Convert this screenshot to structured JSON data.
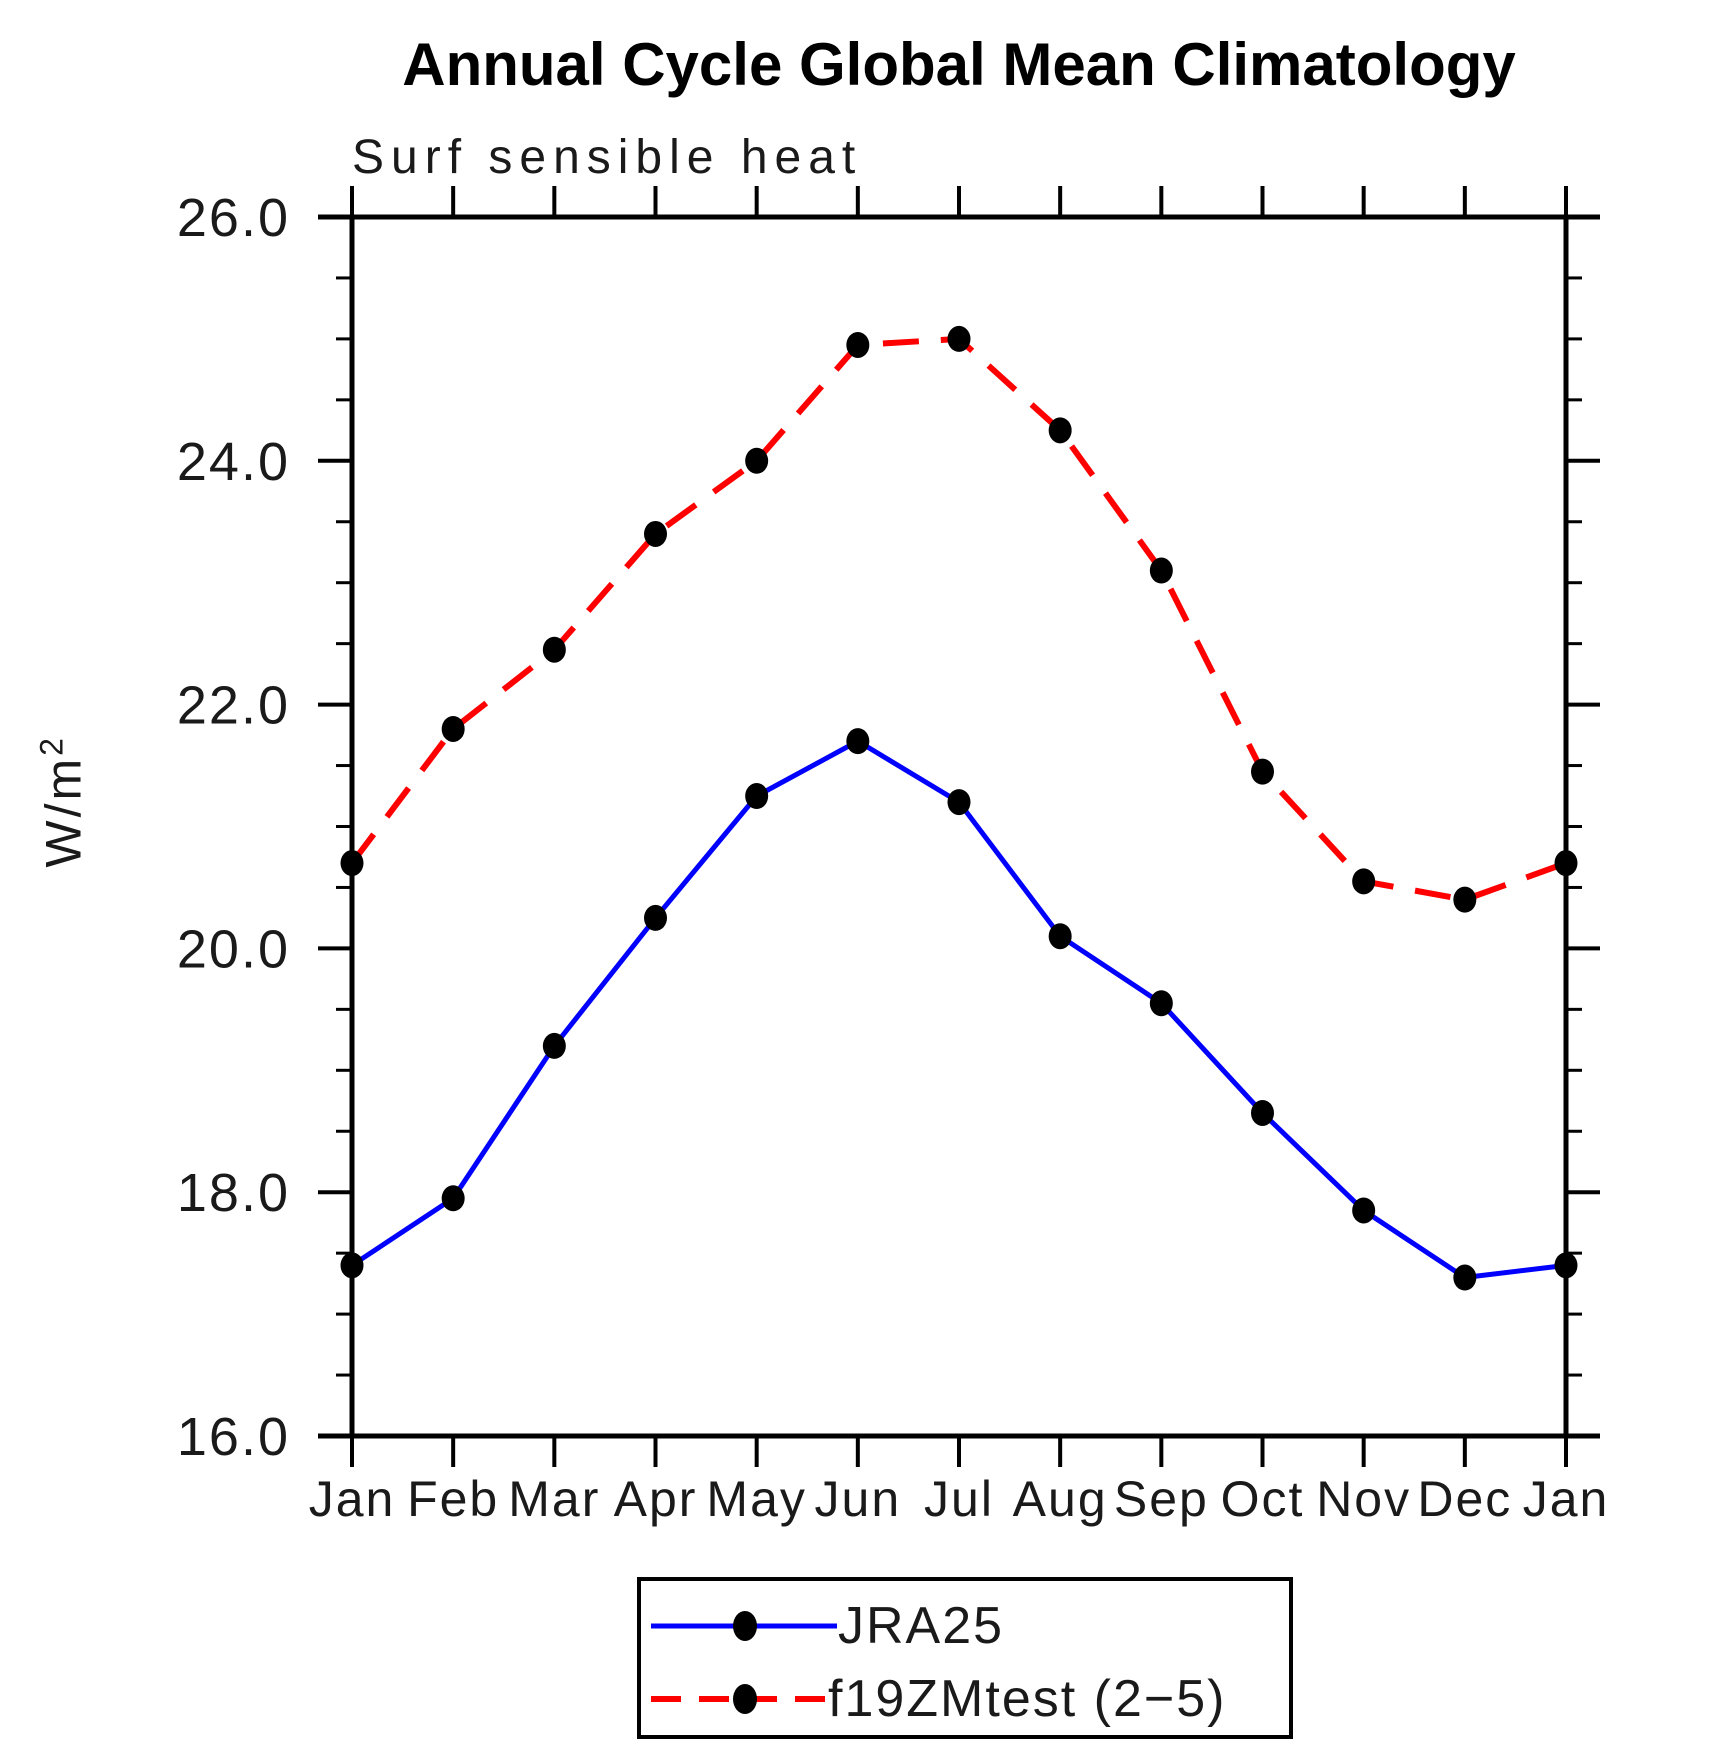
{
  "title": "Annual Cycle Global Mean Climatology",
  "subtitle": "Surf sensible heat",
  "ylabel": {
    "base": "W/m",
    "exponent": "2"
  },
  "axis_colors": {
    "axis": "#000000",
    "text": "#1a1a1a"
  },
  "chart_data": {
    "type": "line",
    "title": "Annual Cycle Global Mean Climatology",
    "subtitle": "Surf sensible heat",
    "ylabel": "W/m2",
    "categories": [
      "Jan",
      "Feb",
      "Mar",
      "Apr",
      "May",
      "Jun",
      "Jul",
      "Aug",
      "Sep",
      "Oct",
      "Nov",
      "Dec",
      "Jan"
    ],
    "ylim": [
      16.0,
      26.0
    ],
    "y_major_step": 2.0,
    "y_minor_step": 0.5,
    "y_tick_labels": [
      "16.0",
      "18.0",
      "20.0",
      "22.0",
      "24.0",
      "26.0"
    ],
    "grid": false,
    "legend_position": "bottom-center",
    "series": [
      {
        "name": "JRA25",
        "line_style": "solid",
        "color": "#0000ff",
        "marker": "filled-circle",
        "marker_color": "#000000",
        "values": [
          17.4,
          17.95,
          19.2,
          20.25,
          21.25,
          21.7,
          21.2,
          20.1,
          19.55,
          18.65,
          17.85,
          17.3,
          17.4
        ]
      },
      {
        "name": "f19ZMtest (2−5)",
        "line_style": "dashed",
        "color": "#ff0000",
        "marker": "filled-circle",
        "marker_color": "#000000",
        "values": [
          20.7,
          21.8,
          22.45,
          23.4,
          24.0,
          24.95,
          25.0,
          24.25,
          23.1,
          21.45,
          20.55,
          20.4,
          20.7
        ]
      }
    ]
  }
}
